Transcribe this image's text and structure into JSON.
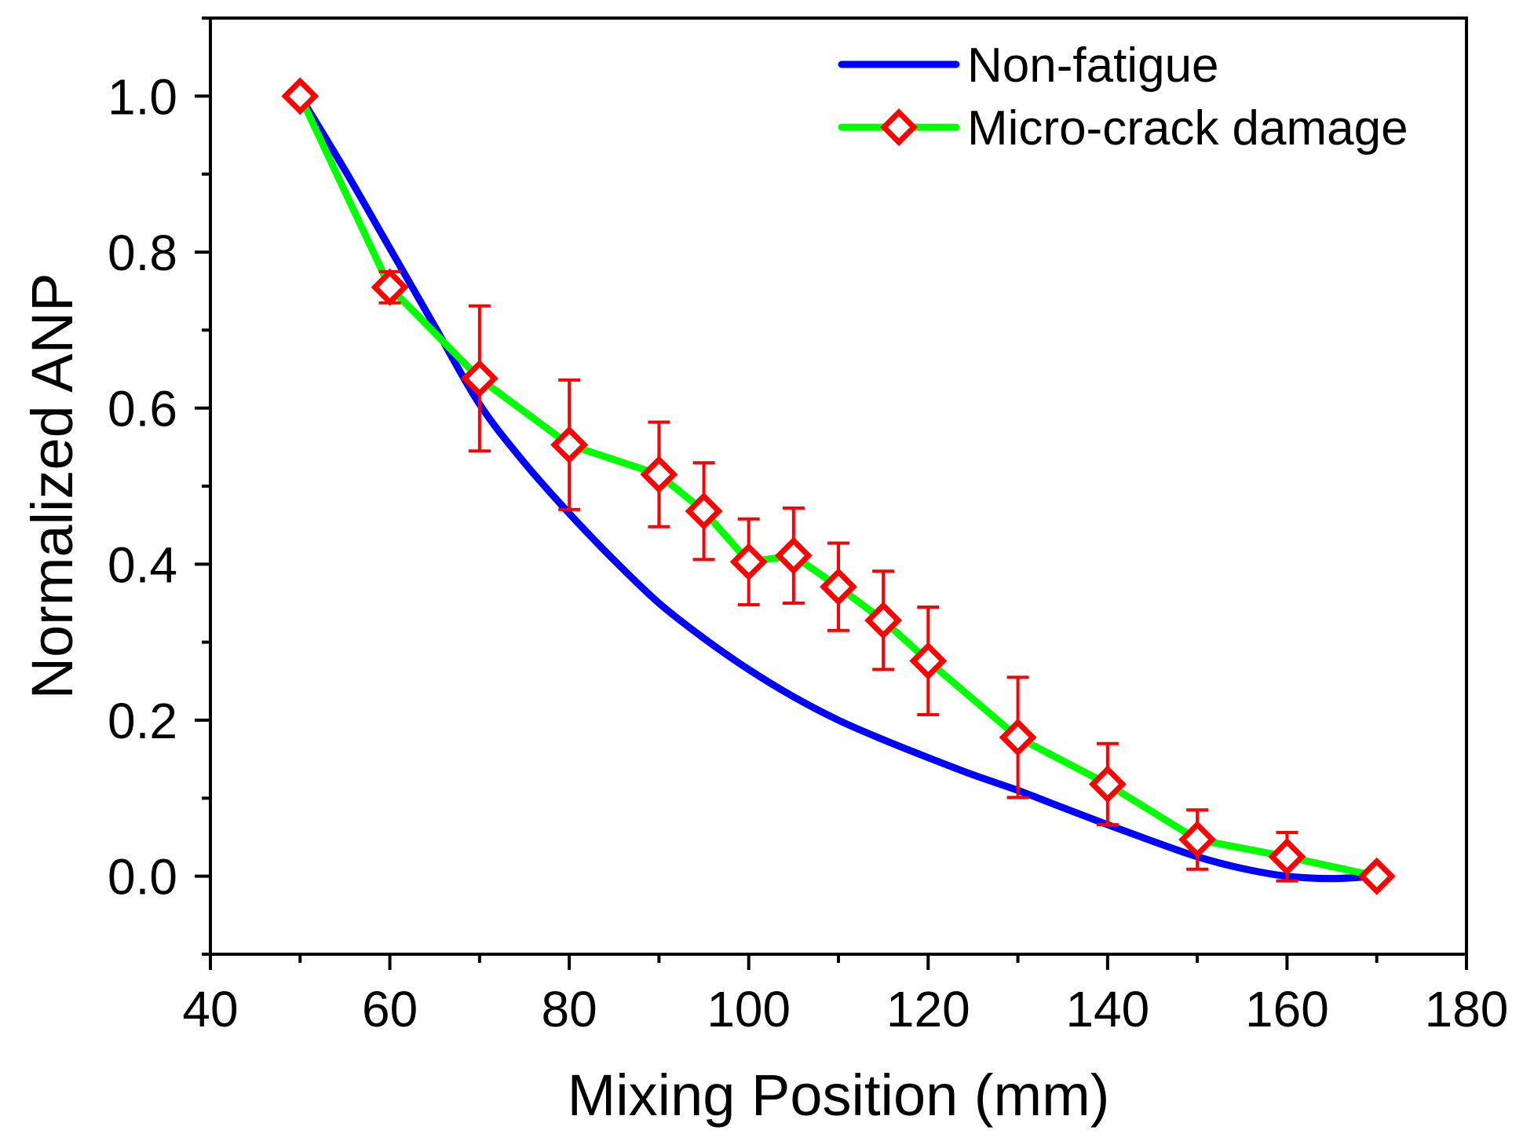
{
  "chart_data": {
    "type": "line",
    "title": "",
    "xlabel": "Mixing Position (mm)",
    "ylabel": "Normalized ANP",
    "xlim": [
      40,
      180
    ],
    "ylim": [
      -0.1,
      1.1
    ],
    "xticks": [
      40,
      60,
      80,
      100,
      120,
      140,
      160,
      180
    ],
    "xtick_labels": [
      "40",
      "60",
      "80",
      "100",
      "120",
      "140",
      "160",
      "180"
    ],
    "yticks": [
      0.0,
      0.2,
      0.4,
      0.6,
      0.8,
      1.0
    ],
    "ytick_labels": [
      "0.0",
      "0.2",
      "0.4",
      "0.6",
      "0.8",
      "1.0"
    ],
    "grid": false,
    "legend_position": "top-right",
    "series": [
      {
        "name": "Non-fatigue",
        "color": "#0000ff",
        "marker": "none",
        "x": [
          50,
          55,
          60,
          65,
          70,
          75,
          80,
          85,
          90,
          95,
          100,
          105,
          110,
          115,
          120,
          125,
          130,
          135,
          140,
          145,
          150,
          155,
          160,
          165,
          170
        ],
        "values": [
          1.0,
          0.905,
          0.805,
          0.705,
          0.605,
          0.53,
          0.465,
          0.405,
          0.35,
          0.305,
          0.265,
          0.23,
          0.2,
          0.175,
          0.152,
          0.13,
          0.11,
          0.088,
          0.066,
          0.045,
          0.025,
          0.01,
          0.0,
          -0.003,
          0.0
        ]
      },
      {
        "name": "Micro-crack damage",
        "color": "#00ff00",
        "marker": "diamond",
        "marker_color": "#ff0000",
        "x": [
          50,
          60,
          70,
          80,
          90,
          95,
          100,
          105,
          110,
          115,
          120,
          130,
          140,
          150,
          160,
          170
        ],
        "values": [
          1.0,
          0.755,
          0.638,
          0.553,
          0.515,
          0.468,
          0.403,
          0.411,
          0.371,
          0.328,
          0.276,
          0.178,
          0.118,
          0.047,
          0.025,
          0.0
        ],
        "error": [
          0.0,
          0.02,
          0.093,
          0.083,
          0.067,
          0.062,
          0.055,
          0.061,
          0.056,
          0.063,
          0.069,
          0.077,
          0.052,
          0.038,
          0.031,
          0.0
        ]
      }
    ]
  }
}
